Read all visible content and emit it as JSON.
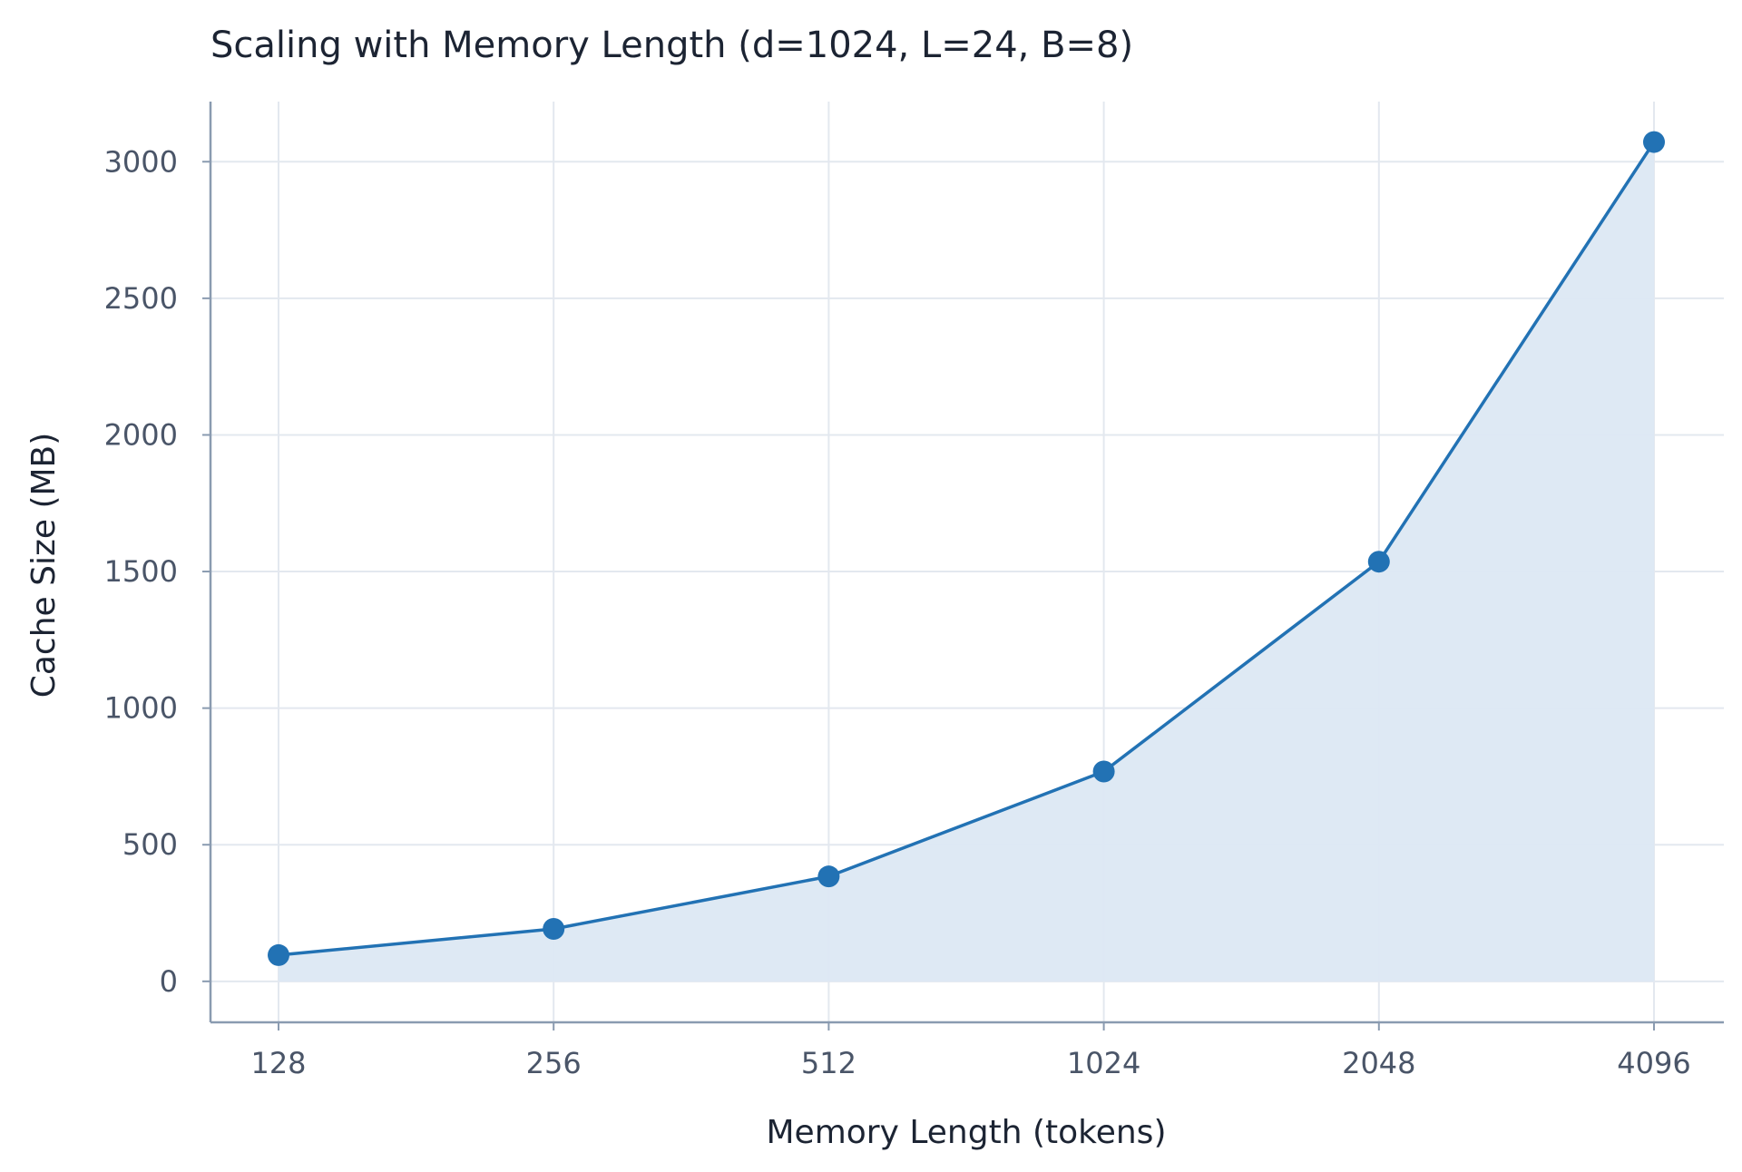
{
  "chart_data": {
    "type": "line",
    "title": "Scaling with Memory Length (d=1024, L=24, B=8)",
    "xlabel": "Memory Length (tokens)",
    "ylabel": "Cache Size (MB)",
    "x_scale": "log2",
    "categories": [
      "128",
      "256",
      "512",
      "1024",
      "2048",
      "4096"
    ],
    "x": [
      128,
      256,
      512,
      1024,
      2048,
      4096
    ],
    "y_ticks": [
      "0",
      "500",
      "1000",
      "1500",
      "2000",
      "2500",
      "3000"
    ],
    "ylim": [
      -150,
      3220
    ],
    "grid": true,
    "area_fill": true,
    "series": [
      {
        "values": [
          96,
          192,
          384,
          768,
          1536,
          3072
        ]
      }
    ],
    "colors": {
      "line": "#2272b4",
      "marker": "#2272b4",
      "area": "#dce8f3"
    }
  }
}
